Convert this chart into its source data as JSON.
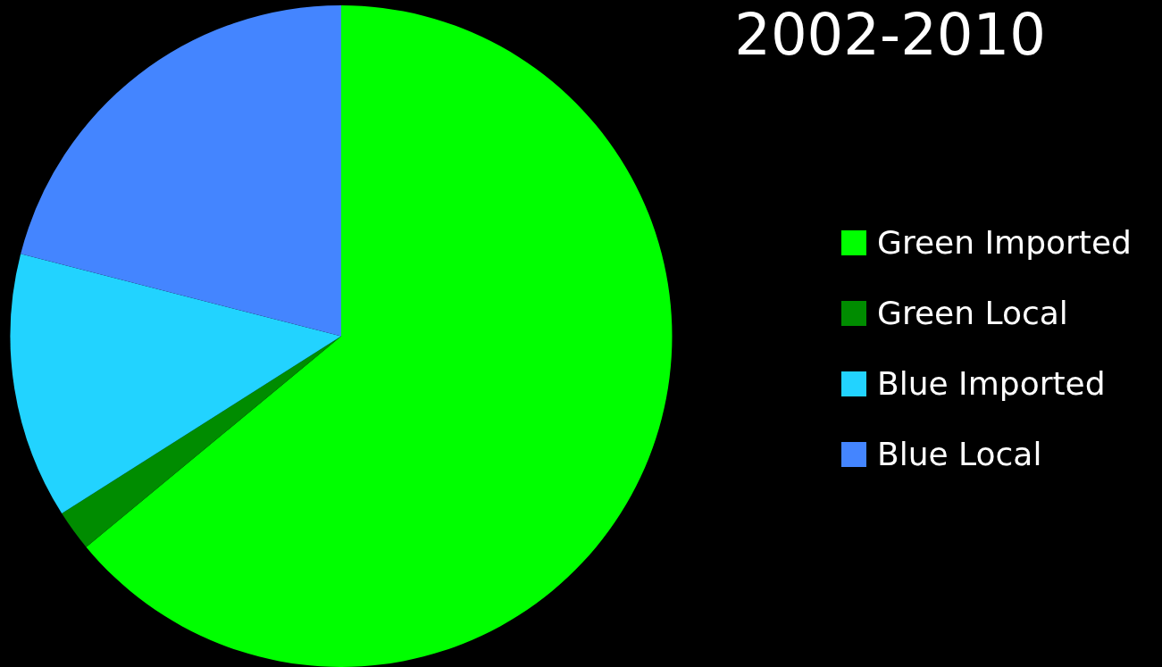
{
  "chart_data": {
    "type": "pie",
    "title": "2002-2010",
    "categories": [
      "Green Imported",
      "Green Local",
      "Blue Imported",
      "Blue Local"
    ],
    "values": [
      64,
      2,
      13,
      21
    ],
    "colors": [
      "#00ff00",
      "#008c00",
      "#22d3ff",
      "#4485ff"
    ],
    "legend": "right"
  }
}
